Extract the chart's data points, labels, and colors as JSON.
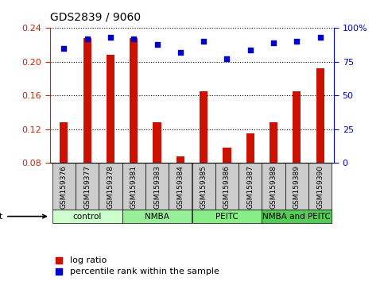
{
  "title": "GDS2839 / 9060",
  "samples": [
    "GSM159376",
    "GSM159377",
    "GSM159378",
    "GSM159381",
    "GSM159383",
    "GSM159384",
    "GSM159385",
    "GSM159386",
    "GSM159387",
    "GSM159388",
    "GSM159389",
    "GSM159390"
  ],
  "log_ratio": [
    0.128,
    0.228,
    0.208,
    0.228,
    0.128,
    0.088,
    0.165,
    0.098,
    0.115,
    0.128,
    0.165,
    0.192
  ],
  "percentile_rank": [
    85,
    92,
    93,
    92,
    88,
    82,
    90,
    77,
    84,
    89,
    90,
    93
  ],
  "groups": [
    {
      "label": "control",
      "start": 0,
      "end": 3,
      "color": "#ccffcc"
    },
    {
      "label": "NMBA",
      "start": 3,
      "end": 6,
      "color": "#99ee99"
    },
    {
      "label": "PEITC",
      "start": 6,
      "end": 9,
      "color": "#88ee88"
    },
    {
      "label": "NMBA and PEITC",
      "start": 9,
      "end": 12,
      "color": "#55cc55"
    }
  ],
  "ylim_left": [
    0.08,
    0.24
  ],
  "ylim_right": [
    0,
    100
  ],
  "yticks_left": [
    0.08,
    0.12,
    0.16,
    0.2,
    0.24
  ],
  "yticks_right": [
    0,
    25,
    50,
    75,
    100
  ],
  "bar_color": "#cc1100",
  "dot_color": "#0000cc",
  "left_axis_color": "#cc2200",
  "right_axis_color": "#0000cc",
  "sample_bg_color": "#cccccc",
  "bar_width": 0.35,
  "figsize": [
    4.83,
    3.54
  ],
  "dpi": 100
}
